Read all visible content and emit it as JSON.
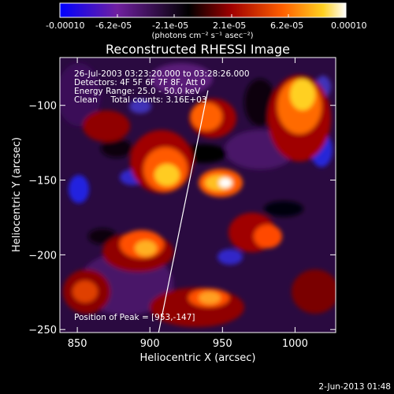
{
  "colorbar": {
    "tick_labels": [
      "-0.00010",
      "-6.2e-05",
      "-2.1e-05",
      "2.1e-05",
      "6.2e-05",
      "0.00010"
    ],
    "min": -0.0001,
    "max": 0.0001,
    "unit_label": "(photons cm⁻² s⁻¹ asec⁻²)"
  },
  "chart_data": {
    "type": "heatmap",
    "title": "Reconstructed RHESSI Image",
    "xlabel": "Heliocentric X (arcsec)",
    "ylabel": "Heliocentric Y (arcsec)",
    "xlim": [
      838,
      1028
    ],
    "ylim": [
      -252,
      -68
    ],
    "x_ticks": [
      850,
      900,
      950,
      1000
    ],
    "y_ticks": [
      -100,
      -150,
      -200,
      -250
    ],
    "colormap": [
      "#0000ff",
      "#7020a0",
      "#000000",
      "#a00000",
      "#ff6000",
      "#ffd020",
      "#ffffff"
    ],
    "peak": {
      "x": 953,
      "y": -147
    },
    "limb_line": {
      "x0": 906,
      "y0": -252,
      "x1": 940,
      "y1": -90
    }
  },
  "annotations": {
    "line1": "26-Jul-2003 03:23:20.000 to 03:28:26.000",
    "line2": "Detectors: 4F 5F 6F 7F 8F, Att 0",
    "line3": "Energy Range: 25.0 - 50.0 keV",
    "line4": "Clean     Total counts: 3.16E+03",
    "peak_text": "Position of Peak = [953,-147]"
  },
  "footer": {
    "timestamp": "2-Jun-2013 01:48"
  }
}
